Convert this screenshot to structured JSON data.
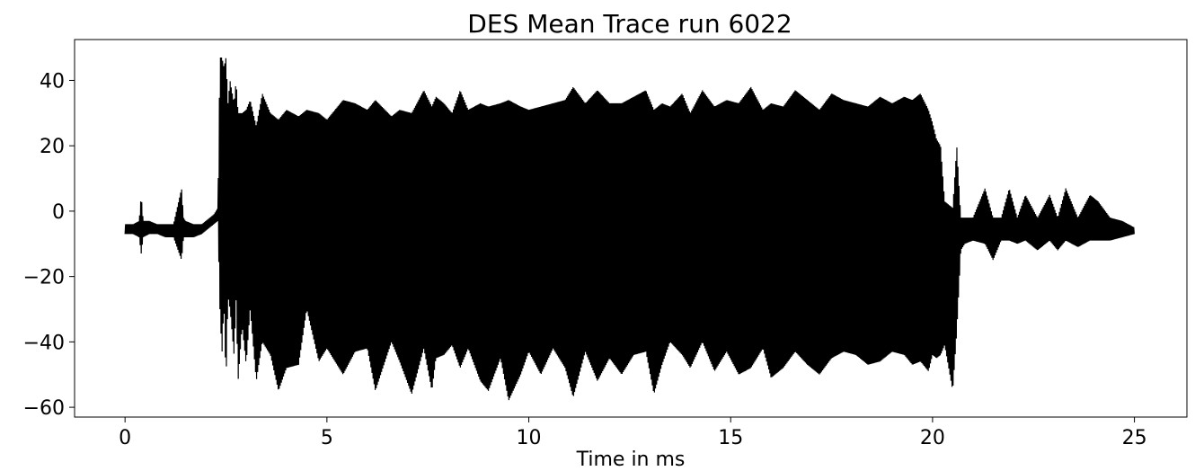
{
  "chart_data": {
    "type": "line",
    "title": "DES Mean Trace run 6022",
    "xlabel": "Time in ms",
    "ylabel": "",
    "xlim": [
      -1.25,
      26.3
    ],
    "ylim": [
      -63,
      52.5
    ],
    "xticks": [
      0,
      5,
      10,
      15,
      20,
      25
    ],
    "xtick_labels": [
      "0",
      "5",
      "10",
      "15",
      "20",
      "25"
    ],
    "yticks": [
      40,
      20,
      0,
      -20,
      -40,
      -60
    ],
    "ytick_labels": [
      "40",
      "20",
      "0",
      "−20",
      "−40",
      "−60"
    ],
    "grid": false,
    "legend": "none",
    "line_color": "#000000",
    "series": [
      {
        "x": [
          0.0,
          0.2,
          0.35,
          0.4,
          0.45,
          0.6,
          0.8,
          1.0,
          1.2,
          1.4,
          1.45,
          1.5,
          1.7,
          1.9,
          2.0,
          2.1,
          2.2,
          2.3,
          2.35,
          2.4,
          2.45,
          2.5,
          2.55,
          2.6,
          2.7,
          2.75,
          2.8,
          2.9,
          3.0,
          3.1,
          3.25,
          3.4,
          3.6,
          3.8,
          4.0,
          4.3,
          4.5,
          4.8,
          5.0,
          5.4,
          5.7,
          6.0,
          6.2,
          6.6,
          6.8,
          7.1,
          7.4,
          7.6,
          7.7,
          7.9,
          8.1,
          8.3,
          8.5,
          8.8,
          9.0,
          9.3,
          9.5,
          9.8,
          10.0,
          10.3,
          10.6,
          10.9,
          11.1,
          11.4,
          11.7,
          12.0,
          12.3,
          12.6,
          12.9,
          13.1,
          13.3,
          13.5,
          13.8,
          14.0,
          14.3,
          14.6,
          14.9,
          15.2,
          15.5,
          15.8,
          16.0,
          16.3,
          16.6,
          16.9,
          17.2,
          17.5,
          17.8,
          18.1,
          18.4,
          18.7,
          19.0,
          19.3,
          19.5,
          19.7,
          19.9,
          20.0,
          20.1,
          20.2,
          20.3,
          20.5,
          20.6,
          20.7,
          20.8,
          21.0,
          21.3,
          21.5,
          21.7,
          21.9,
          22.1,
          22.3,
          22.6,
          22.9,
          23.1,
          23.3,
          23.6,
          23.9,
          24.1,
          24.4,
          24.7,
          25.0
        ],
        "upper": [
          -4,
          -4,
          -3,
          5,
          -3,
          -3,
          -4,
          -4,
          -4,
          7,
          -2,
          -3,
          -4,
          -4,
          -3,
          -2,
          -1,
          1,
          47,
          47,
          44,
          47,
          33,
          40,
          33,
          40,
          30,
          30,
          31,
          34,
          26,
          36,
          30,
          28,
          31,
          29,
          31,
          30,
          28,
          34,
          33,
          31,
          34,
          29,
          31,
          30,
          37,
          32,
          35,
          33,
          30,
          37,
          31,
          33,
          32,
          33,
          34,
          32,
          31,
          32,
          33,
          34,
          38,
          33,
          37,
          33,
          33,
          35,
          37,
          31,
          33,
          32,
          36,
          30,
          37,
          32,
          34,
          33,
          38,
          31,
          33,
          32,
          37,
          34,
          31,
          36,
          34,
          33,
          32,
          35,
          33,
          35,
          34,
          36,
          31,
          27,
          22,
          20,
          3,
          1,
          20,
          -2,
          -2,
          -2,
          7,
          -2,
          -2,
          7,
          -2,
          5,
          -2,
          5,
          -2,
          7,
          -2,
          5,
          3,
          -2,
          -3,
          -5
        ],
        "lower": [
          -7,
          -7,
          -8,
          -13,
          -8,
          -7,
          -7,
          -8,
          -8,
          -15,
          -8,
          -8,
          -8,
          -7,
          -6,
          -5,
          -4,
          -3,
          -30,
          -44,
          -28,
          -53,
          -26,
          -30,
          -44,
          -27,
          -52,
          -35,
          -47,
          -30,
          -52,
          -40,
          -44,
          -55,
          -48,
          -47,
          -30,
          -46,
          -42,
          -50,
          -43,
          -42,
          -55,
          -40,
          -46,
          -56,
          -42,
          -55,
          -45,
          -44,
          -41,
          -48,
          -42,
          -52,
          -55,
          -45,
          -58,
          -50,
          -43,
          -50,
          -42,
          -48,
          -57,
          -43,
          -52,
          -45,
          -50,
          -44,
          -43,
          -56,
          -47,
          -40,
          -44,
          -48,
          -40,
          -49,
          -43,
          -50,
          -48,
          -42,
          -51,
          -48,
          -43,
          -47,
          -50,
          -45,
          -43,
          -44,
          -47,
          -46,
          -43,
          -44,
          -47,
          -46,
          -49,
          -44,
          -45,
          -44,
          -41,
          -55,
          -37,
          -12,
          -10,
          -9,
          -10,
          -15,
          -9,
          -9,
          -10,
          -9,
          -12,
          -9,
          -12,
          -9,
          -11,
          -9,
          -9,
          -9,
          -8,
          -7
        ]
      }
    ]
  }
}
